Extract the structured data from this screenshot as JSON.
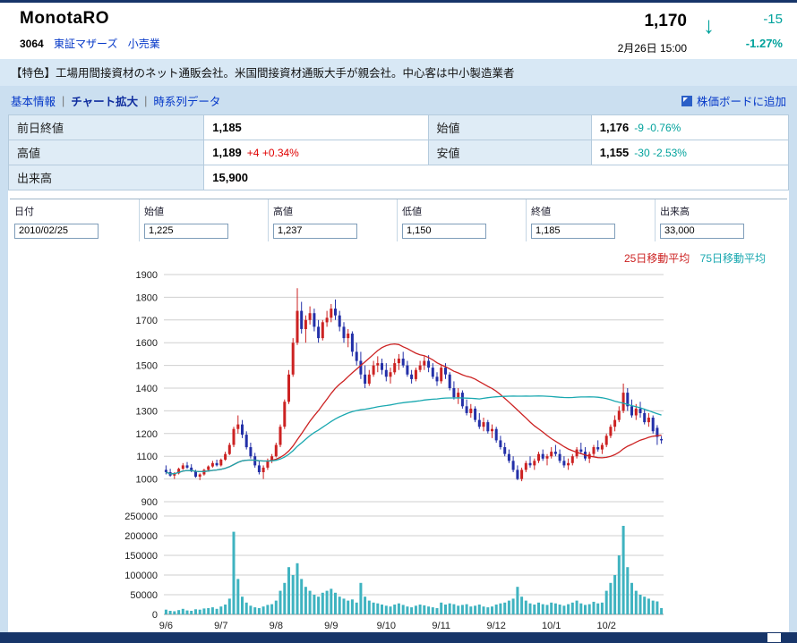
{
  "header": {
    "company": "MonotaRO",
    "code": "3064",
    "market": "東証マザーズ",
    "industry": "小売業",
    "price": "1,170",
    "change": "-15",
    "change_pct": "-1.27%",
    "datetime": "2月26日 15:00",
    "arrow": "↓"
  },
  "feature": "【特色】工場用間接資材のネット通販会社。米国間接資材通販大手が親会社。中心客は中小製造業者",
  "tabs": {
    "basic": "基本情報",
    "chart": "チャート拡大",
    "timeseries": "時系列データ",
    "separator": "|",
    "add_board": "株価ボードに追加"
  },
  "quote": {
    "prev_close_label": "前日終値",
    "prev_close": "1,185",
    "open_label": "始値",
    "open": "1,176",
    "open_chg": "-9 -0.76%",
    "high_label": "高値",
    "high": "1,189",
    "high_chg": "+4 +0.34%",
    "low_label": "安値",
    "low": "1,155",
    "low_chg": "-30 -2.53%",
    "volume_label": "出来高",
    "volume": "15,900"
  },
  "entry": {
    "date_label": "日付",
    "date": "2010/02/25",
    "open_label": "始値",
    "open": "1,225",
    "high_label": "高値",
    "high": "1,237",
    "low_label": "低値",
    "low": "1,150",
    "close_label": "終値",
    "close": "1,185",
    "volume_label": "出来高",
    "volume": "33,000"
  },
  "legend": {
    "ma25_label": "25日移動平均",
    "ma25_color": "#cc2222",
    "ma75_label": "75日移動平均",
    "ma75_color": "#1aa8b0"
  },
  "chart_data": {
    "type": "candlestick",
    "title": "MonotaRO (3064) daily price with 25/75-day moving averages and volume",
    "price_axis": {
      "min": 900,
      "max": 1900,
      "step": 100
    },
    "volume_axis": {
      "min": 0,
      "max": 250000,
      "step": 50000
    },
    "x_labels": [
      "9/6",
      "9/7",
      "9/8",
      "9/9",
      "9/10",
      "9/11",
      "9/12",
      "10/1",
      "10/2"
    ],
    "x_label_indices": [
      0,
      13,
      26,
      39,
      52,
      65,
      78,
      91,
      104
    ],
    "up_color": "#cc2222",
    "down_color": "#2330a8",
    "volume_color": "#3fb3c0",
    "grid_color": "#cfcfcf",
    "candles": [
      [
        1040,
        1060,
        1020,
        1030,
        12000
      ],
      [
        1030,
        1045,
        1010,
        1015,
        9000
      ],
      [
        1015,
        1030,
        1000,
        1025,
        8000
      ],
      [
        1025,
        1050,
        1020,
        1045,
        11000
      ],
      [
        1045,
        1070,
        1040,
        1060,
        14000
      ],
      [
        1060,
        1075,
        1045,
        1050,
        10000
      ],
      [
        1050,
        1065,
        1030,
        1035,
        9000
      ],
      [
        1035,
        1040,
        1005,
        1010,
        13000
      ],
      [
        1010,
        1025,
        995,
        1020,
        12000
      ],
      [
        1020,
        1045,
        1015,
        1040,
        15000
      ],
      [
        1040,
        1060,
        1035,
        1055,
        16000
      ],
      [
        1055,
        1080,
        1050,
        1070,
        18000
      ],
      [
        1070,
        1085,
        1055,
        1060,
        14000
      ],
      [
        1060,
        1090,
        1055,
        1085,
        20000
      ],
      [
        1085,
        1120,
        1080,
        1110,
        25000
      ],
      [
        1110,
        1160,
        1105,
        1150,
        40000
      ],
      [
        1150,
        1230,
        1140,
        1220,
        210000
      ],
      [
        1220,
        1280,
        1200,
        1240,
        90000
      ],
      [
        1240,
        1260,
        1180,
        1195,
        45000
      ],
      [
        1195,
        1210,
        1130,
        1140,
        30000
      ],
      [
        1140,
        1160,
        1090,
        1100,
        22000
      ],
      [
        1100,
        1115,
        1050,
        1060,
        18000
      ],
      [
        1060,
        1080,
        1020,
        1030,
        16000
      ],
      [
        1030,
        1060,
        1000,
        1050,
        20000
      ],
      [
        1050,
        1090,
        1040,
        1080,
        24000
      ],
      [
        1080,
        1110,
        1070,
        1100,
        26000
      ],
      [
        1100,
        1160,
        1095,
        1150,
        35000
      ],
      [
        1150,
        1240,
        1140,
        1230,
        60000
      ],
      [
        1230,
        1350,
        1220,
        1340,
        80000
      ],
      [
        1340,
        1480,
        1330,
        1460,
        120000
      ],
      [
        1460,
        1620,
        1450,
        1600,
        100000
      ],
      [
        1600,
        1840,
        1590,
        1740,
        130000
      ],
      [
        1740,
        1780,
        1640,
        1660,
        90000
      ],
      [
        1660,
        1720,
        1600,
        1700,
        70000
      ],
      [
        1700,
        1760,
        1680,
        1730,
        60000
      ],
      [
        1730,
        1750,
        1650,
        1670,
        50000
      ],
      [
        1670,
        1700,
        1600,
        1620,
        45000
      ],
      [
        1620,
        1700,
        1610,
        1690,
        55000
      ],
      [
        1690,
        1740,
        1670,
        1710,
        60000
      ],
      [
        1710,
        1770,
        1690,
        1750,
        65000
      ],
      [
        1750,
        1790,
        1700,
        1720,
        55000
      ],
      [
        1720,
        1740,
        1650,
        1670,
        45000
      ],
      [
        1670,
        1690,
        1600,
        1620,
        40000
      ],
      [
        1620,
        1660,
        1580,
        1640,
        35000
      ],
      [
        1640,
        1650,
        1540,
        1560,
        38000
      ],
      [
        1560,
        1600,
        1500,
        1520,
        30000
      ],
      [
        1520,
        1560,
        1440,
        1460,
        80000
      ],
      [
        1460,
        1500,
        1400,
        1420,
        45000
      ],
      [
        1420,
        1480,
        1410,
        1460,
        35000
      ],
      [
        1460,
        1520,
        1450,
        1500,
        30000
      ],
      [
        1500,
        1540,
        1470,
        1510,
        28000
      ],
      [
        1510,
        1530,
        1460,
        1480,
        25000
      ],
      [
        1480,
        1510,
        1430,
        1450,
        22000
      ],
      [
        1450,
        1490,
        1420,
        1470,
        20000
      ],
      [
        1470,
        1530,
        1460,
        1510,
        25000
      ],
      [
        1510,
        1550,
        1480,
        1530,
        28000
      ],
      [
        1530,
        1560,
        1490,
        1500,
        24000
      ],
      [
        1500,
        1520,
        1450,
        1460,
        20000
      ],
      [
        1460,
        1480,
        1420,
        1440,
        18000
      ],
      [
        1440,
        1490,
        1430,
        1480,
        22000
      ],
      [
        1480,
        1520,
        1470,
        1500,
        25000
      ],
      [
        1500,
        1540,
        1480,
        1520,
        23000
      ],
      [
        1520,
        1545,
        1470,
        1490,
        20000
      ],
      [
        1490,
        1510,
        1440,
        1450,
        18000
      ],
      [
        1450,
        1470,
        1410,
        1430,
        16000
      ],
      [
        1430,
        1500,
        1420,
        1490,
        30000
      ],
      [
        1490,
        1510,
        1440,
        1460,
        25000
      ],
      [
        1460,
        1470,
        1390,
        1400,
        28000
      ],
      [
        1400,
        1430,
        1350,
        1360,
        26000
      ],
      [
        1360,
        1400,
        1330,
        1380,
        22000
      ],
      [
        1380,
        1390,
        1310,
        1320,
        24000
      ],
      [
        1320,
        1350,
        1280,
        1290,
        26000
      ],
      [
        1290,
        1330,
        1270,
        1310,
        20000
      ],
      [
        1310,
        1320,
        1250,
        1260,
        22000
      ],
      [
        1260,
        1290,
        1220,
        1230,
        25000
      ],
      [
        1230,
        1270,
        1210,
        1250,
        20000
      ],
      [
        1250,
        1260,
        1200,
        1210,
        18000
      ],
      [
        1210,
        1240,
        1180,
        1220,
        20000
      ],
      [
        1220,
        1230,
        1160,
        1170,
        25000
      ],
      [
        1170,
        1190,
        1130,
        1140,
        28000
      ],
      [
        1140,
        1160,
        1100,
        1110,
        30000
      ],
      [
        1110,
        1130,
        1070,
        1080,
        35000
      ],
      [
        1080,
        1100,
        1030,
        1040,
        40000
      ],
      [
        1040,
        1060,
        995,
        1000,
        70000
      ],
      [
        1000,
        1050,
        990,
        1040,
        45000
      ],
      [
        1040,
        1080,
        1030,
        1070,
        35000
      ],
      [
        1070,
        1100,
        1050,
        1060,
        28000
      ],
      [
        1060,
        1090,
        1040,
        1080,
        25000
      ],
      [
        1080,
        1120,
        1070,
        1110,
        30000
      ],
      [
        1110,
        1130,
        1080,
        1090,
        26000
      ],
      [
        1090,
        1110,
        1060,
        1100,
        24000
      ],
      [
        1100,
        1140,
        1090,
        1120,
        30000
      ],
      [
        1120,
        1150,
        1100,
        1110,
        28000
      ],
      [
        1110,
        1130,
        1070,
        1080,
        25000
      ],
      [
        1080,
        1100,
        1050,
        1060,
        22000
      ],
      [
        1060,
        1090,
        1040,
        1070,
        26000
      ],
      [
        1070,
        1110,
        1060,
        1100,
        30000
      ],
      [
        1100,
        1140,
        1090,
        1130,
        35000
      ],
      [
        1130,
        1160,
        1110,
        1120,
        28000
      ],
      [
        1120,
        1140,
        1080,
        1090,
        24000
      ],
      [
        1090,
        1120,
        1070,
        1110,
        26000
      ],
      [
        1110,
        1150,
        1100,
        1140,
        32000
      ],
      [
        1140,
        1170,
        1120,
        1130,
        28000
      ],
      [
        1130,
        1160,
        1110,
        1150,
        30000
      ],
      [
        1150,
        1200,
        1140,
        1190,
        60000
      ],
      [
        1190,
        1240,
        1180,
        1230,
        80000
      ],
      [
        1230,
        1280,
        1210,
        1260,
        100000
      ],
      [
        1260,
        1320,
        1250,
        1300,
        150000
      ],
      [
        1300,
        1420,
        1290,
        1380,
        225000
      ],
      [
        1380,
        1400,
        1300,
        1320,
        120000
      ],
      [
        1320,
        1350,
        1270,
        1280,
        80000
      ],
      [
        1280,
        1330,
        1260,
        1310,
        60000
      ],
      [
        1310,
        1340,
        1270,
        1290,
        50000
      ],
      [
        1290,
        1310,
        1240,
        1250,
        45000
      ],
      [
        1250,
        1290,
        1230,
        1270,
        40000
      ],
      [
        1270,
        1280,
        1200,
        1210,
        35000
      ],
      [
        1225,
        1237,
        1150,
        1185,
        33000
      ],
      [
        1176,
        1189,
        1155,
        1170,
        15900
      ]
    ]
  }
}
